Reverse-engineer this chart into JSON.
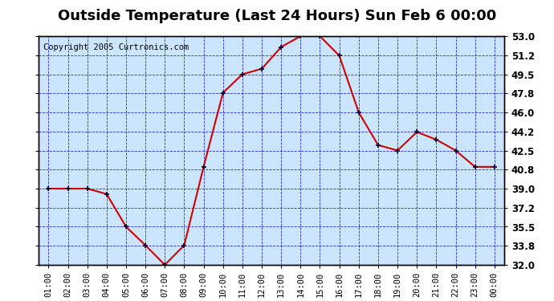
{
  "title": "Outside Temperature (Last 24 Hours) Sun Feb 6 00:00",
  "copyright": "Copyright 2005 Curtronics.com",
  "x_labels": [
    "01:00",
    "02:00",
    "03:00",
    "04:00",
    "05:00",
    "06:00",
    "07:00",
    "08:00",
    "09:00",
    "10:00",
    "11:00",
    "12:00",
    "13:00",
    "14:00",
    "15:00",
    "16:00",
    "17:00",
    "18:00",
    "19:00",
    "20:00",
    "21:00",
    "22:00",
    "23:00",
    "00:00"
  ],
  "y_values": [
    39.0,
    39.0,
    39.0,
    38.5,
    35.5,
    33.8,
    32.0,
    33.8,
    41.0,
    47.8,
    49.5,
    50.0,
    52.0,
    53.0,
    53.0,
    51.2,
    46.0,
    43.0,
    42.5,
    44.2,
    43.5,
    42.5,
    41.0,
    41.0
  ],
  "yticks": [
    32.0,
    33.8,
    35.5,
    37.2,
    39.0,
    40.8,
    42.5,
    44.2,
    46.0,
    47.8,
    49.5,
    51.2,
    53.0
  ],
  "ymin": 32.0,
  "ymax": 53.0,
  "line_color": "#cc0000",
  "marker_color": "#000033",
  "bg_color": "#cce5ff",
  "plot_bg": "#cce5ff",
  "grid_color": "#0000cc",
  "title_fontsize": 13,
  "copyright_fontsize": 7.5
}
